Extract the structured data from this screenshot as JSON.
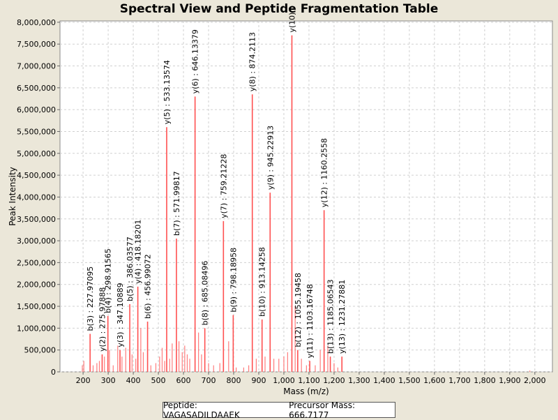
{
  "chart_data": {
    "type": "bar",
    "title": "Spectral View and Peptide Fragmentation Table",
    "xlabel": "Mass (m/z)",
    "ylabel": "Peak Intensity",
    "xlim": [
      108,
      2070
    ],
    "ylim": [
      0,
      8030000
    ],
    "xticks": [
      200,
      300,
      400,
      500,
      600,
      700,
      800,
      900,
      1000,
      1100,
      1200,
      1300,
      1400,
      1500,
      1600,
      1700,
      1800,
      1900,
      2000
    ],
    "xtick_labels": [
      "200",
      "300",
      "400",
      "500",
      "600",
      "700",
      "800",
      "900",
      "1,000",
      "1,100",
      "1,200",
      "1,300",
      "1,400",
      "1,500",
      "1,600",
      "1,700",
      "1,800",
      "1,900",
      "2,000"
    ],
    "yticks": [
      0,
      500000,
      1000000,
      1500000,
      2000000,
      2500000,
      3000000,
      3500000,
      4000000,
      4500000,
      5000000,
      5500000,
      6000000,
      6500000,
      7000000,
      7500000,
      8000000
    ],
    "ytick_labels": [
      "0",
      "500,000",
      "1,000,000",
      "1,500,000",
      "2,000,000",
      "2,500,000",
      "3,000,000",
      "3,500,000",
      "4,000,000",
      "4,500,000",
      "5,000,000",
      "5,500,000",
      "6,000,000",
      "6,500,000",
      "7,000,000",
      "7,500,000",
      "8,000,000"
    ],
    "grid": true,
    "annotated_peaks": [
      {
        "mz": 227.97,
        "intensity": 870000,
        "label": "b(3) : 227.97095"
      },
      {
        "mz": 275.98,
        "intensity": 400000,
        "label": "y(2) : 275.97888"
      },
      {
        "mz": 298.92,
        "intensity": 1280000,
        "label": "b(4) : 298.91565"
      },
      {
        "mz": 347.11,
        "intensity": 500000,
        "label": "y(3) : 347.10889"
      },
      {
        "mz": 386.04,
        "intensity": 1550000,
        "label": "b(5) : 386.03577"
      },
      {
        "mz": 418.18,
        "intensity": 1950000,
        "label": "y(4) : 418.18201"
      },
      {
        "mz": 456.99,
        "intensity": 1150000,
        "label": "b(6) : 456.99072"
      },
      {
        "mz": 533.14,
        "intensity": 5600000,
        "label": "y(5) : 533.13574"
      },
      {
        "mz": 571.99,
        "intensity": 3050000,
        "label": "b(7) : 571.99817"
      },
      {
        "mz": 646.14,
        "intensity": 6300000,
        "label": "y(6) : 646.13379"
      },
      {
        "mz": 685.08,
        "intensity": 1000000,
        "label": "b(8) : 685.08496"
      },
      {
        "mz": 759.21,
        "intensity": 3450000,
        "label": "y(7) : 759.21228"
      },
      {
        "mz": 798.19,
        "intensity": 1300000,
        "label": "b(9) : 798.18958"
      },
      {
        "mz": 874.21,
        "intensity": 6350000,
        "label": "y(8) : 874.2113"
      },
      {
        "mz": 913.14,
        "intensity": 1200000,
        "label": "b(10) : 913.14258"
      },
      {
        "mz": 945.23,
        "intensity": 4100000,
        "label": "y(9) : 945.22913"
      },
      {
        "mz": 1032,
        "intensity": 7700000,
        "label": "y(10)"
      },
      {
        "mz": 1055.19,
        "intensity": 500000,
        "label": "b(12) : 1055.19458"
      },
      {
        "mz": 1103.17,
        "intensity": 250000,
        "label": "y(11) : 1103.16748"
      },
      {
        "mz": 1160.26,
        "intensity": 3700000,
        "label": "y(12) : 1160.2558"
      },
      {
        "mz": 1185.07,
        "intensity": 350000,
        "label": "b(13) : 1185.06543"
      },
      {
        "mz": 1231.28,
        "intensity": 350000,
        "label": "y(13) : 1231.27881"
      }
    ],
    "minor_peaks": [
      [
        197,
        150000
      ],
      [
        203,
        250000
      ],
      [
        240,
        150000
      ],
      [
        255,
        200000
      ],
      [
        265,
        250000
      ],
      [
        285,
        350000
      ],
      [
        305,
        500000
      ],
      [
        320,
        150000
      ],
      [
        338,
        600000
      ],
      [
        355,
        350000
      ],
      [
        370,
        550000
      ],
      [
        395,
        400000
      ],
      [
        410,
        300000
      ],
      [
        430,
        1000000
      ],
      [
        440,
        450000
      ],
      [
        470,
        150000
      ],
      [
        490,
        200000
      ],
      [
        505,
        350000
      ],
      [
        515,
        550000
      ],
      [
        525,
        250000
      ],
      [
        545,
        300000
      ],
      [
        555,
        650000
      ],
      [
        582,
        700000
      ],
      [
        595,
        450000
      ],
      [
        605,
        600000
      ],
      [
        615,
        400000
      ],
      [
        625,
        300000
      ],
      [
        660,
        900000
      ],
      [
        672,
        400000
      ],
      [
        700,
        200000
      ],
      [
        720,
        150000
      ],
      [
        745,
        200000
      ],
      [
        780,
        700000
      ],
      [
        810,
        100000
      ],
      [
        840,
        100000
      ],
      [
        860,
        150000
      ],
      [
        890,
        300000
      ],
      [
        925,
        350000
      ],
      [
        960,
        300000
      ],
      [
        980,
        300000
      ],
      [
        1000,
        350000
      ],
      [
        1015,
        450000
      ],
      [
        1045,
        1500000
      ],
      [
        1070,
        300000
      ],
      [
        1090,
        150000
      ],
      [
        1125,
        150000
      ],
      [
        1145,
        500000
      ],
      [
        1175,
        600000
      ],
      [
        1200,
        200000
      ],
      [
        1215,
        100000
      ],
      [
        1980,
        30000
      ]
    ]
  },
  "legend": {
    "peptide": "Peptide: VAGASADILDAAEK",
    "precursor": "Precursor Mass: 666.7177"
  },
  "colors": {
    "peak": "#ff5050",
    "plot_bg": "#ffffff",
    "page_bg": "#ebe7d9"
  }
}
